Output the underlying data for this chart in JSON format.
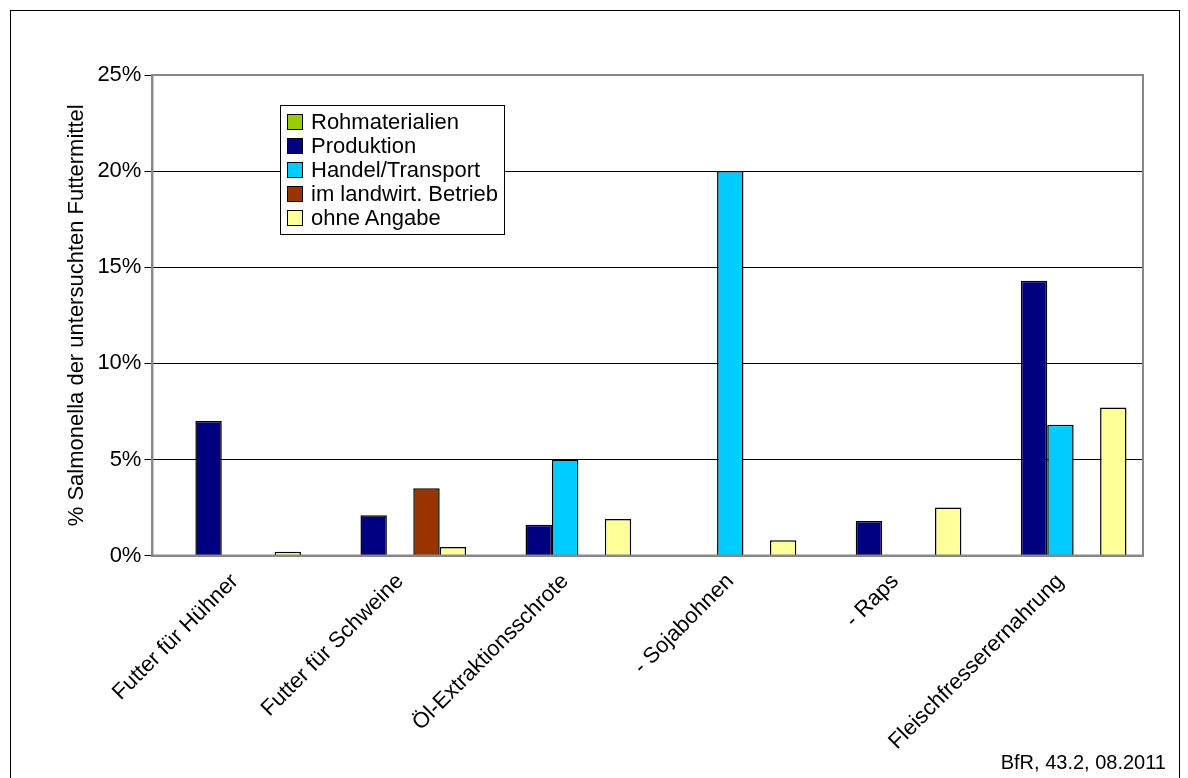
{
  "chart_data": {
    "type": "bar",
    "ylabel": "% Salmonella der untersuchten Futtermittel",
    "categories": [
      "Futter für Hühner",
      "Futter für Schweine",
      "Öl-Extraktionsschrote",
      "- Sojabohnen",
      "- Raps",
      "Fleischfresserernahrung"
    ],
    "series": [
      {
        "name": "Rohmaterialien",
        "color": "#99cc00",
        "values": [
          null,
          null,
          null,
          null,
          null,
          null
        ]
      },
      {
        "name": "Produktion",
        "color": "#000080",
        "values": [
          7.0,
          2.1,
          1.6,
          null,
          1.8,
          14.3
        ]
      },
      {
        "name": "Handel/Transport",
        "color": "#00ccff",
        "values": [
          null,
          null,
          5.0,
          20.0,
          null,
          6.8
        ]
      },
      {
        "name": "im landwirt. Betrieb",
        "color": "#993300",
        "values": [
          null,
          3.5,
          null,
          null,
          null,
          null
        ]
      },
      {
        "name": "ohne Angabe",
        "color": "#ffff99",
        "values": [
          0.2,
          0.45,
          1.9,
          0.8,
          2.5,
          7.7
        ]
      }
    ],
    "ylim": [
      0,
      25
    ],
    "yticks": [
      {
        "value": 0,
        "label": "0%"
      },
      {
        "value": 5,
        "label": "5%"
      },
      {
        "value": 10,
        "label": "10%"
      },
      {
        "value": 15,
        "label": "15%"
      },
      {
        "value": 20,
        "label": "20%"
      },
      {
        "value": 25,
        "label": "25%"
      }
    ],
    "grid": "y",
    "legend": "top left",
    "annotations": [
      "BfR, 43.2, 08.2011"
    ]
  }
}
